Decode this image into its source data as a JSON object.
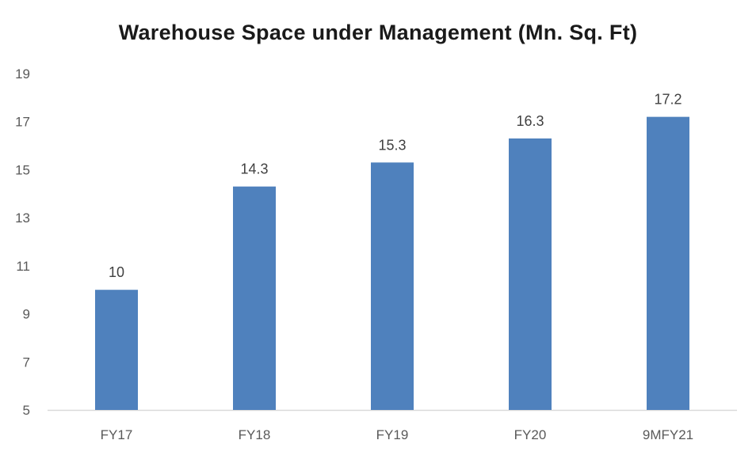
{
  "chart_data": {
    "type": "bar",
    "title": "Warehouse Space under Management (Mn. Sq. Ft)",
    "categories": [
      "FY17",
      "FY18",
      "FY19",
      "FY20",
      "9MFY21"
    ],
    "values": [
      10,
      14.3,
      15.3,
      16.3,
      17.2
    ],
    "value_labels": [
      "10",
      "14.3",
      "15.3",
      "16.3",
      "17.2"
    ],
    "xlabel": "",
    "ylabel": "",
    "ylim": [
      5,
      19
    ],
    "yticks": [
      "5",
      "7",
      "9",
      "11",
      "13",
      "15",
      "17",
      "19"
    ],
    "grid": false,
    "legend": "none",
    "bar_color": "#4f81bd",
    "axis_color": "#d9d9d9"
  }
}
